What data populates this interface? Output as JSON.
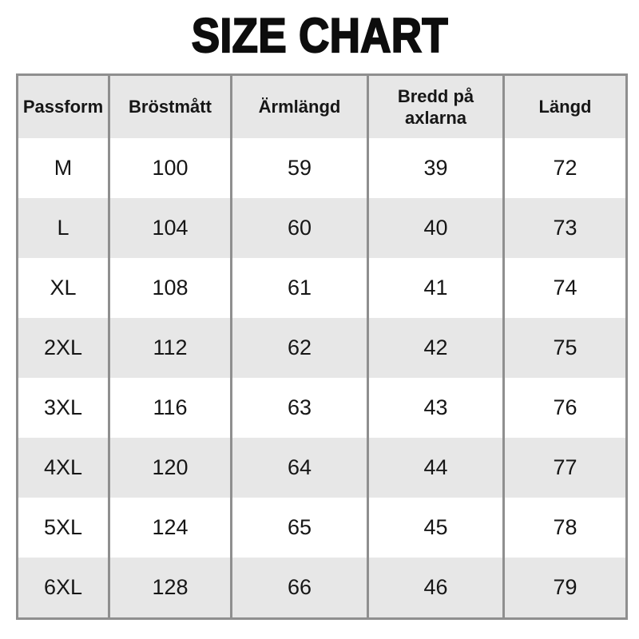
{
  "title": "SIZE CHART",
  "colors": {
    "background": "#ffffff",
    "border": "#8f8f8f",
    "stripe": "#e7e7e7",
    "text": "#161616",
    "title_text": "#0d0d0d"
  },
  "chart_data": {
    "type": "table",
    "title": "SIZE CHART",
    "columns": [
      "Passform",
      "Bröstmått",
      "Ärmlängd",
      "Bredd på axlarna",
      "Längd"
    ],
    "rows": [
      [
        "M",
        100,
        59,
        39,
        72
      ],
      [
        "L",
        104,
        60,
        40,
        73
      ],
      [
        "XL",
        108,
        61,
        41,
        74
      ],
      [
        "2XL",
        112,
        62,
        42,
        75
      ],
      [
        "3XL",
        116,
        63,
        43,
        76
      ],
      [
        "4XL",
        120,
        64,
        44,
        77
      ],
      [
        "5XL",
        124,
        65,
        45,
        78
      ],
      [
        "6XL",
        128,
        66,
        46,
        79
      ]
    ],
    "layout_hints": {
      "striped_rows": "header and even rows shaded",
      "grid": "vertical dividers and outer border only"
    }
  }
}
